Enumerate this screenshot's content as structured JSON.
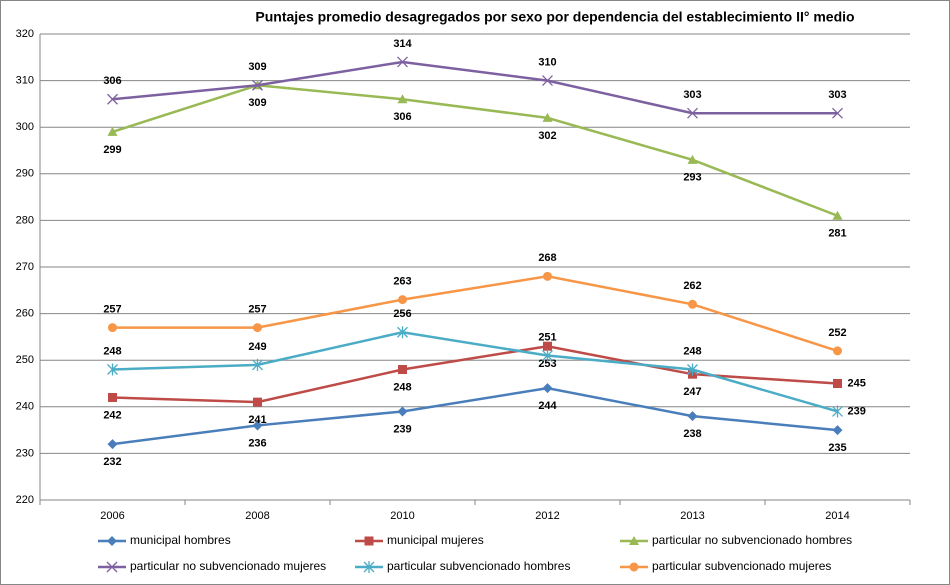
{
  "chart_data": {
    "type": "line",
    "title": "Puntajes promedio desagregados por sexo por dependencia del establecimiento II° medio",
    "categories": [
      "2006",
      "2008",
      "2010",
      "2012",
      "2013",
      "2014"
    ],
    "ylim": [
      220,
      320
    ],
    "yticks": [
      220,
      230,
      240,
      250,
      260,
      270,
      280,
      290,
      300,
      310,
      320
    ],
    "grid": true,
    "series": [
      {
        "name": "municipal hombres",
        "color": "#4a7ebb",
        "marker": "diamond",
        "values": [
          232,
          236,
          239,
          244,
          238,
          235
        ]
      },
      {
        "name": "municipal mujeres",
        "color": "#be4b48",
        "marker": "square",
        "values": [
          242,
          241,
          248,
          253,
          247,
          245
        ]
      },
      {
        "name": "particular no subvencionado hombres",
        "color": "#98b954",
        "marker": "triangle",
        "values": [
          299,
          309,
          306,
          302,
          293,
          281
        ]
      },
      {
        "name": "particular no subvencionado mujeres",
        "color": "#7d60a0",
        "marker": "x",
        "values": [
          306,
          309,
          314,
          310,
          303,
          303
        ]
      },
      {
        "name": "particular subvencionado hombres",
        "color": "#4bacc6",
        "marker": "star",
        "values": [
          248,
          249,
          256,
          251,
          248,
          239
        ]
      },
      {
        "name": "particular subvencionado mujeres",
        "color": "#f79646",
        "marker": "circle",
        "values": [
          257,
          257,
          263,
          268,
          262,
          252
        ]
      }
    ]
  }
}
